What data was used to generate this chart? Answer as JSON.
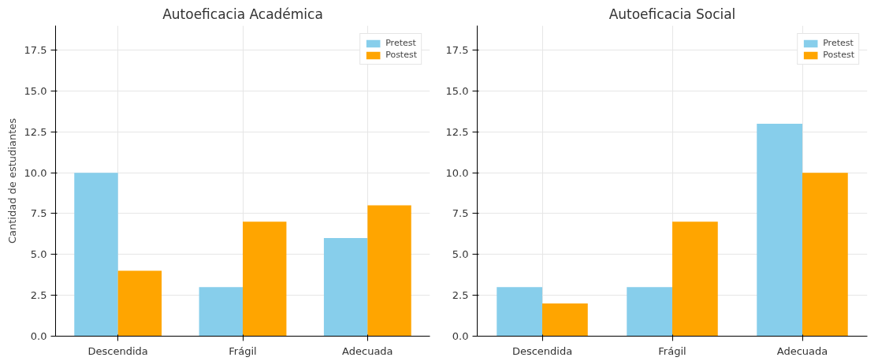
{
  "chart_data": [
    {
      "type": "bar",
      "title": "Autoeficacia Académica",
      "ylabel": "Cantidad de estudiantes",
      "categories": [
        "Descendida",
        "Frágil",
        "Adecuada"
      ],
      "series": [
        {
          "name": "Pretest",
          "color": "#87ceeb",
          "values": [
            10,
            3,
            6
          ]
        },
        {
          "name": "Postest",
          "color": "#ffa500",
          "values": [
            4,
            7,
            8
          ]
        }
      ],
      "ylim": [
        0,
        19
      ],
      "yticks": [
        {
          "value": 0,
          "label": "0.0"
        },
        2.5,
        {
          "value": 5,
          "label": "5.0"
        },
        7.5,
        {
          "value": 10,
          "label": "10.0"
        },
        12.5,
        {
          "value": 15,
          "label": "15.0"
        },
        17.5
      ],
      "grid": true,
      "legend": "top right"
    },
    {
      "type": "bar",
      "title": "Autoeficacia Social",
      "categories": [
        "Descendida",
        "Frágil",
        "Adecuada"
      ],
      "series": [
        {
          "name": "Pretest",
          "color": "#87ceeb",
          "values": [
            3,
            3,
            13
          ]
        },
        {
          "name": "Postest",
          "color": "#ffa500",
          "values": [
            2,
            7,
            10
          ]
        }
      ],
      "ylim": [
        0,
        19
      ],
      "yticks": [
        {
          "value": 0,
          "label": "0.0"
        },
        2.5,
        {
          "value": 5,
          "label": "5.0"
        },
        7.5,
        {
          "value": 10,
          "label": "10.0"
        },
        12.5,
        {
          "value": 15,
          "label": "15.0"
        },
        17.5
      ],
      "grid": true,
      "legend": "top right"
    }
  ]
}
